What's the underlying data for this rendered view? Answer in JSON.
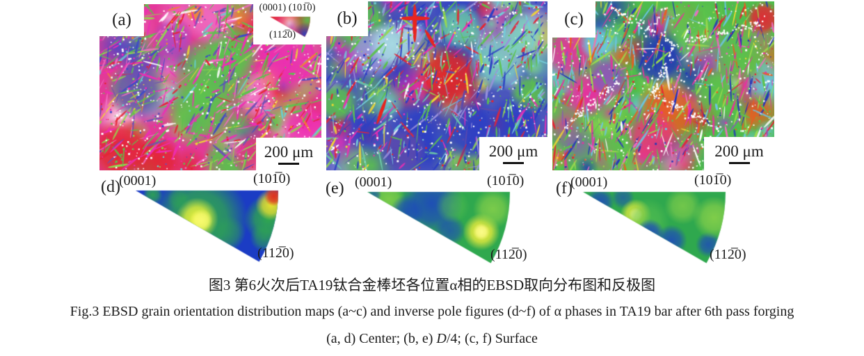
{
  "maps": [
    {
      "label": "(a)",
      "scalebar": "200 μm"
    },
    {
      "label": "(b)",
      "scalebar": "200 μm"
    },
    {
      "label": "(c)",
      "scalebar": "200 μm"
    }
  ],
  "legend": {
    "label_0001": "(0001)",
    "label_1010": "(101̅0)",
    "label_1120": "(112̅0)",
    "key_colors": {
      "c0001": "#dd2828",
      "c1010": "#57c050",
      "c1120": "#2b3fbf"
    }
  },
  "ipf_panels": [
    {
      "label": "(d)",
      "corner_apex": "(0001)",
      "corner_right": "(101̅0)",
      "corner_bottom": "(112̅0)",
      "base_color": "#1b3cc4",
      "hotspots": [
        {
          "u": 0.45,
          "v": 0.2,
          "r": 0.34,
          "color": "#2fa84e",
          "a": 1
        },
        {
          "u": 0.43,
          "v": 0.2,
          "r": 0.15,
          "color": "#eef23c",
          "a": 1
        },
        {
          "u": 0.46,
          "v": 0.21,
          "r": 0.08,
          "color": "#f8fa70",
          "a": 1
        },
        {
          "u": 0.12,
          "v": 0.03,
          "r": 0.07,
          "color": "#2fa84e",
          "a": 0.9
        },
        {
          "u": 0.3,
          "v": 0.06,
          "r": 0.08,
          "color": "#2fa84e",
          "a": 0.6
        },
        {
          "u": 0.93,
          "v": 0.2,
          "r": 0.17,
          "color": "#2fa84e",
          "a": 1
        },
        {
          "u": 0.9,
          "v": 0.33,
          "r": 0.1,
          "color": "#2fa84e",
          "a": 0.7
        },
        {
          "u": 0.65,
          "v": 0.3,
          "r": 0.12,
          "color": "#2fa84e",
          "a": 0.5
        },
        {
          "u": 0.95,
          "v": 0.1,
          "r": 0.11,
          "color": "#e8e030",
          "a": 1
        },
        {
          "u": 0.97,
          "v": 0.04,
          "r": 0.07,
          "color": "#e03020",
          "a": 1
        }
      ]
    },
    {
      "label": "(e)",
      "corner_apex": "(0001)",
      "corner_right": "(101̅0)",
      "corner_bottom": "(112̅0)",
      "base_color": "#2fa84e",
      "hotspots": [
        {
          "u": 0.15,
          "v": 0.05,
          "r": 0.12,
          "color": "#8ed44a",
          "a": 0.8
        },
        {
          "u": 0.45,
          "v": 0.08,
          "r": 0.22,
          "color": "#1d46c0",
          "a": 0.9
        },
        {
          "u": 0.28,
          "v": 0.14,
          "r": 0.12,
          "color": "#1d46c0",
          "a": 0.8
        },
        {
          "u": 0.58,
          "v": 0.27,
          "r": 0.11,
          "color": "#1d46c0",
          "a": 0.7
        },
        {
          "u": 0.97,
          "v": 0.47,
          "r": 0.09,
          "color": "#1d46c0",
          "a": 0.9
        },
        {
          "u": 0.05,
          "v": 0.02,
          "r": 0.05,
          "color": "#1d46c0",
          "a": 0.6
        },
        {
          "u": 0.8,
          "v": 0.28,
          "r": 0.13,
          "color": "#f0ee3c",
          "a": 1
        },
        {
          "u": 0.8,
          "v": 0.28,
          "r": 0.06,
          "color": "#fbfb8a",
          "a": 1
        },
        {
          "u": 0.88,
          "v": 0.12,
          "r": 0.14,
          "color": "#8ed44a",
          "a": 0.8
        },
        {
          "u": 0.6,
          "v": 0.1,
          "r": 0.12,
          "color": "#57c050",
          "a": 0.6
        }
      ]
    },
    {
      "label": "(f)",
      "corner_apex": "(0001)",
      "corner_right": "(101̅0)",
      "corner_bottom": "(112̅0)",
      "base_color": "#2fa84e",
      "hotspots": [
        {
          "u": 0.12,
          "v": 0.07,
          "r": 0.1,
          "color": "#1d46c0",
          "a": 0.85
        },
        {
          "u": 0.28,
          "v": 0.04,
          "r": 0.08,
          "color": "#1d46c0",
          "a": 0.6
        },
        {
          "u": 0.37,
          "v": 0.16,
          "r": 0.11,
          "color": "#f0ee3c",
          "a": 1
        },
        {
          "u": 0.37,
          "v": 0.16,
          "r": 0.05,
          "color": "#fbfb8a",
          "a": 1
        },
        {
          "u": 0.45,
          "v": 0.2,
          "r": 0.16,
          "color": "#57c050",
          "a": 0.7
        },
        {
          "u": 0.47,
          "v": 0.29,
          "r": 0.1,
          "color": "#1d46c0",
          "a": 0.9
        },
        {
          "u": 0.62,
          "v": 0.34,
          "r": 0.11,
          "color": "#1d46c0",
          "a": 0.85
        },
        {
          "u": 0.88,
          "v": 0.37,
          "r": 0.09,
          "color": "#1d46c0",
          "a": 0.8
        },
        {
          "u": 0.92,
          "v": 0.18,
          "r": 0.15,
          "color": "#8ed44a",
          "a": 0.85
        },
        {
          "u": 0.7,
          "v": 0.1,
          "r": 0.13,
          "color": "#8ed44a",
          "a": 0.7
        }
      ]
    }
  ],
  "captions": {
    "chinese": "图3  第6火次后TA19钛合金棒坯各位置α相的EBSD取向分布图和反极图",
    "english": "Fig.3  EBSD grain orientation distribution maps (a~c) and inverse pole figures (d~f) of α phases in TA19 bar after 6th pass forging",
    "sub_pre": "(a, d) Center; (b, e) ",
    "sub_italic": "D",
    "sub_post": "/4; (c, f) Surface"
  }
}
